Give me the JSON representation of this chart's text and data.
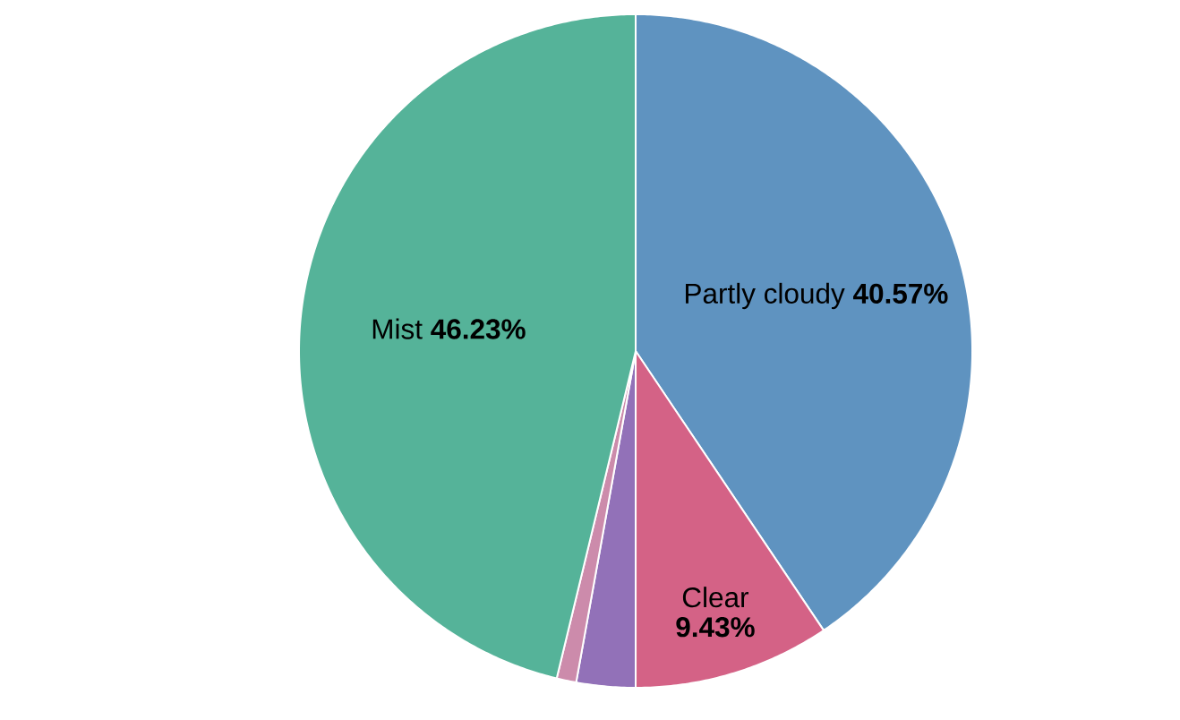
{
  "chart_data": {
    "type": "pie",
    "categories": [
      "Partly cloudy",
      "Clear",
      null,
      null,
      "Mist"
    ],
    "values": [
      40.57,
      9.43,
      2.83,
      0.94,
      46.23
    ],
    "colors": [
      "#5f93c0",
      "#d46286",
      "#9271b8",
      "#cc8bab",
      "#55b399"
    ],
    "value_labels": [
      "40.57%",
      "9.43%",
      null,
      null,
      "46.23%"
    ]
  }
}
